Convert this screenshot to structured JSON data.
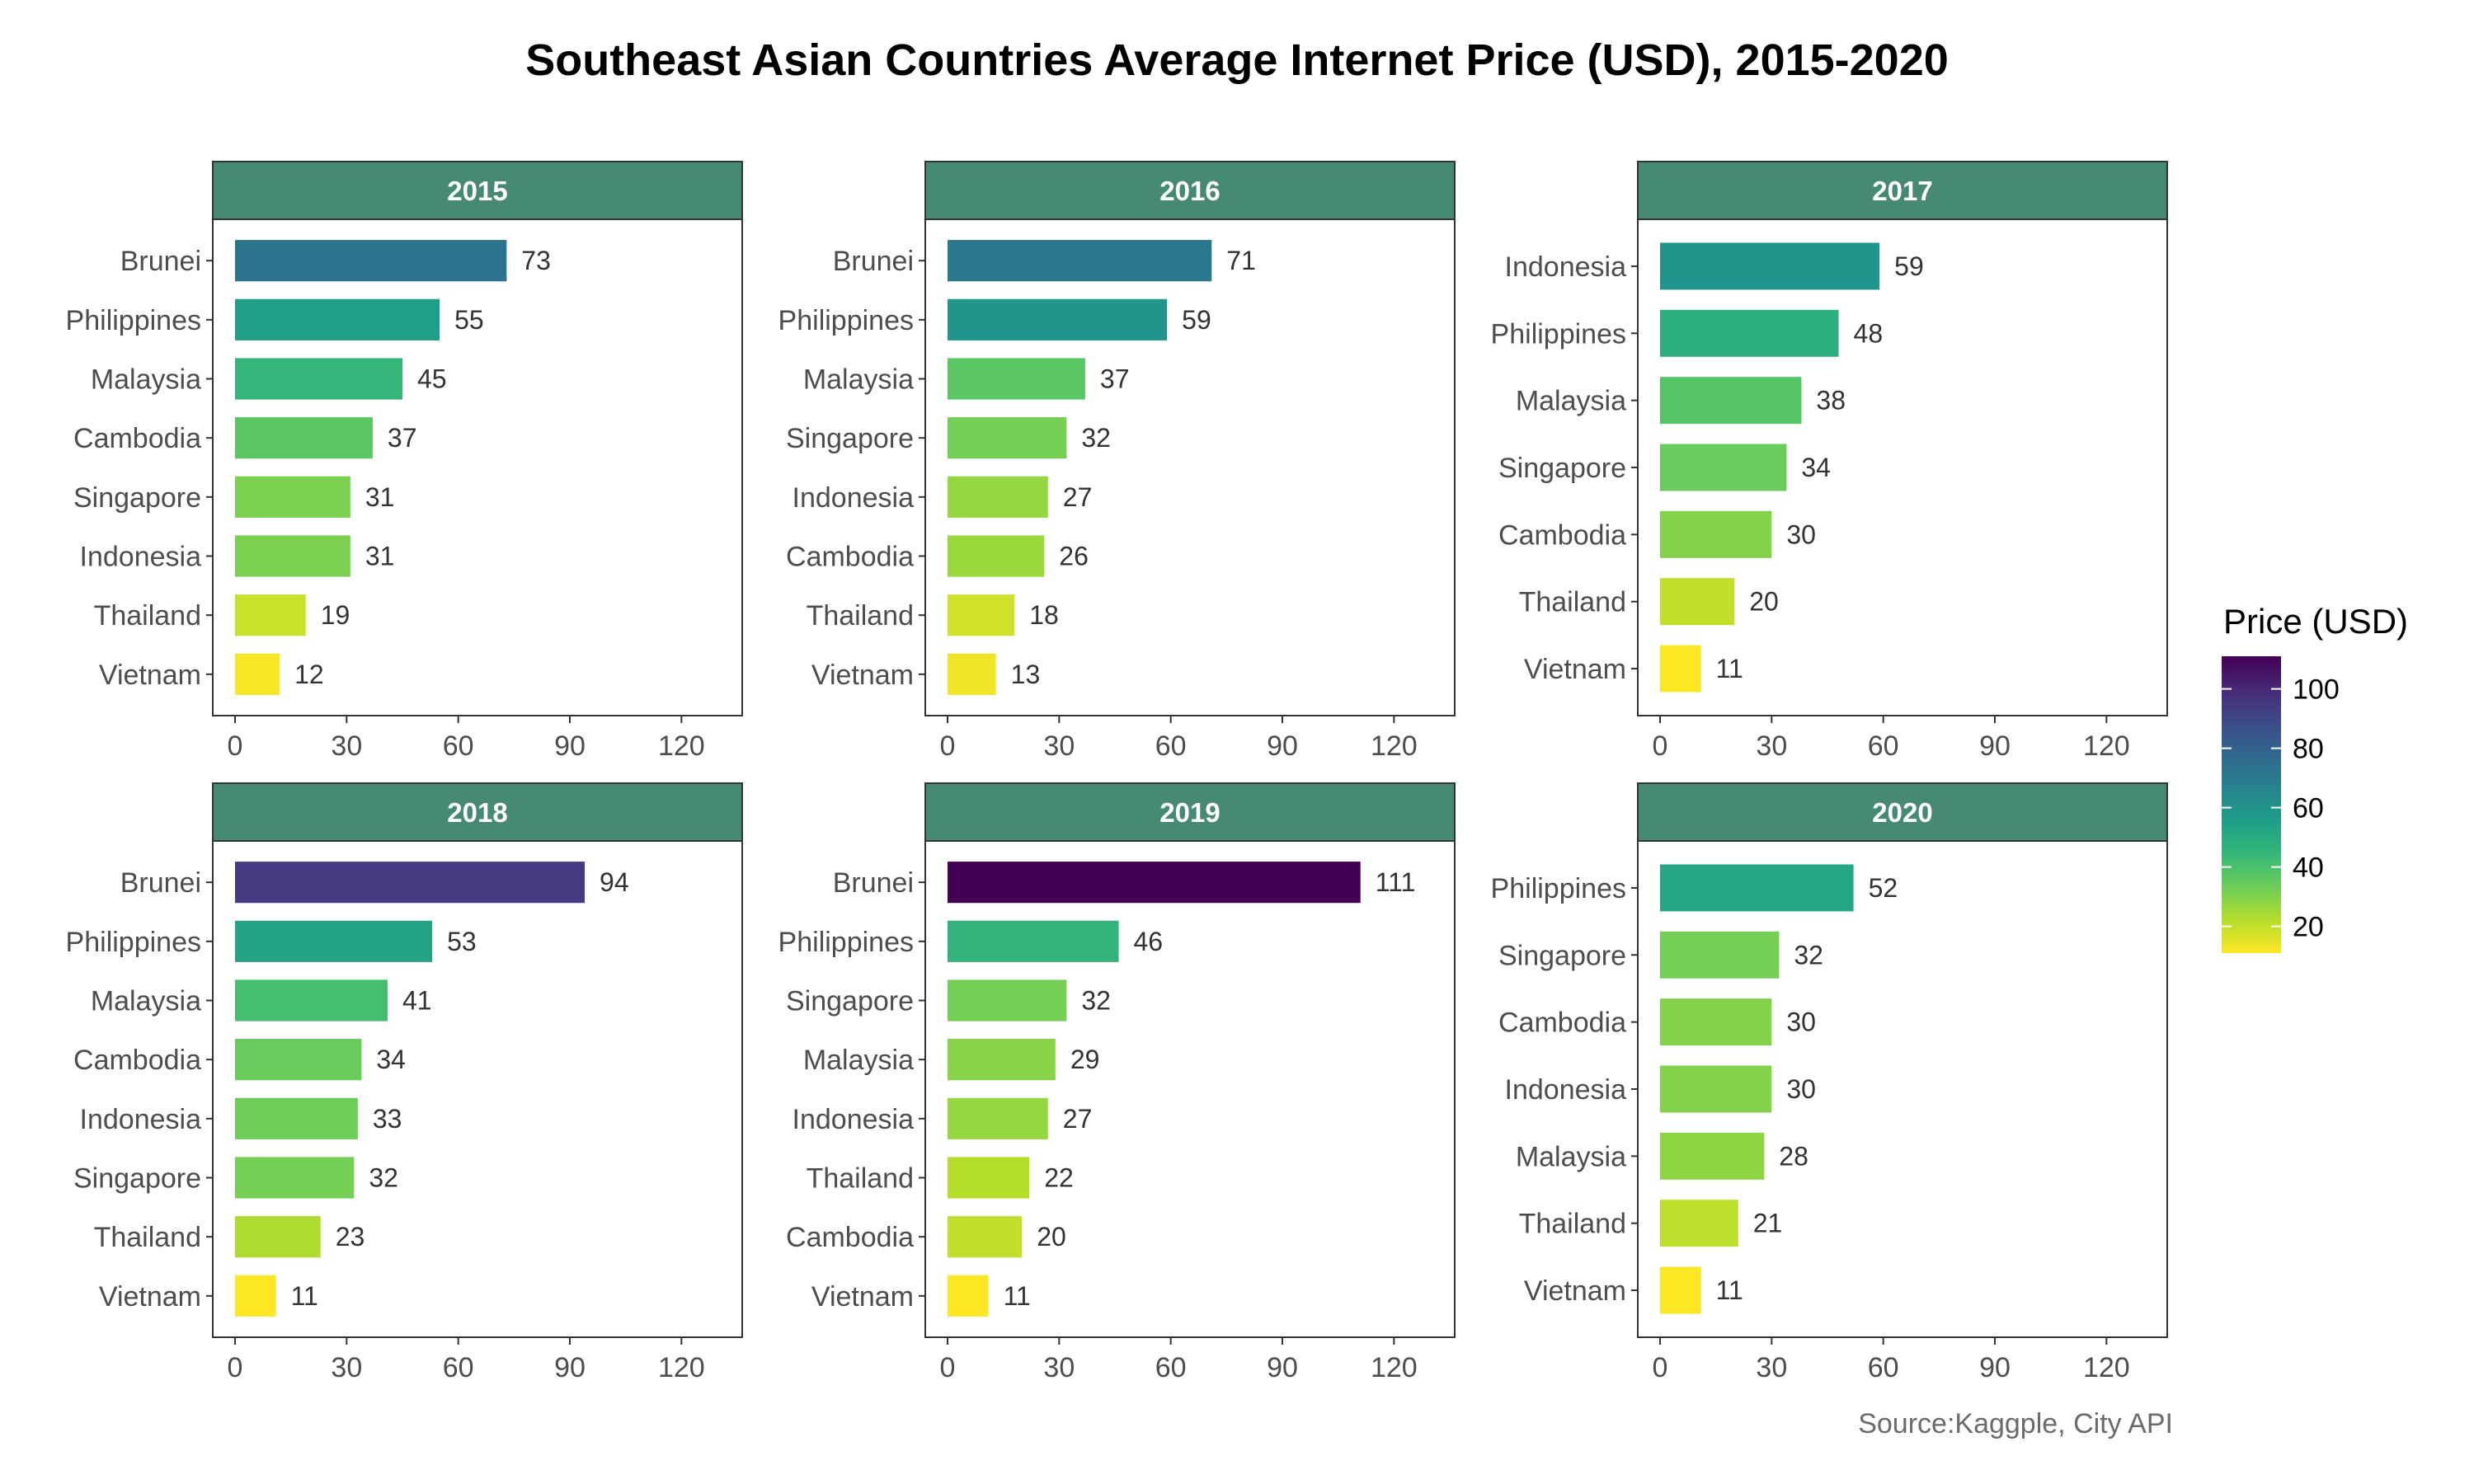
{
  "title": "Southeast Asian Countries Average Internet Price (USD), 2015-2020",
  "source": "Source:Kaggple, City API",
  "legend": {
    "title": "Price (USD)",
    "ticks": [
      20,
      40,
      60,
      80,
      100
    ],
    "range": [
      11,
      111
    ],
    "palette": "viridis (reversed: high = dark purple, low = yellow)"
  },
  "colors": {
    "strip_fill": "#468A74",
    "panel_border": "#333333",
    "viridis_stops": [
      "#440154",
      "#482878",
      "#3E4A89",
      "#31688E",
      "#26828E",
      "#1F9E89",
      "#35B779",
      "#6DCD59",
      "#B4DE2C",
      "#FDE725"
    ]
  },
  "chart_data": {
    "type": "bar",
    "orientation": "horizontal",
    "xlim": [
      0,
      135
    ],
    "xticks": [
      0,
      30,
      60,
      90,
      120
    ],
    "grid": false,
    "legend_position": "right",
    "panels": [
      {
        "label": "2015",
        "categories": [
          "Brunei",
          "Philippines",
          "Malaysia",
          "Cambodia",
          "Singapore",
          "Indonesia",
          "Thailand",
          "Vietnam"
        ],
        "values": [
          73,
          55,
          45,
          37,
          31,
          31,
          19,
          12
        ]
      },
      {
        "label": "2016",
        "categories": [
          "Brunei",
          "Philippines",
          "Malaysia",
          "Singapore",
          "Indonesia",
          "Cambodia",
          "Thailand",
          "Vietnam"
        ],
        "values": [
          71,
          59,
          37,
          32,
          27,
          26,
          18,
          13
        ]
      },
      {
        "label": "2017",
        "categories": [
          "Indonesia",
          "Philippines",
          "Malaysia",
          "Singapore",
          "Cambodia",
          "Thailand",
          "Vietnam"
        ],
        "values": [
          59,
          48,
          38,
          34,
          30,
          20,
          11
        ]
      },
      {
        "label": "2018",
        "categories": [
          "Brunei",
          "Philippines",
          "Malaysia",
          "Cambodia",
          "Indonesia",
          "Singapore",
          "Thailand",
          "Vietnam"
        ],
        "values": [
          94,
          53,
          41,
          34,
          33,
          32,
          23,
          11
        ]
      },
      {
        "label": "2019",
        "categories": [
          "Brunei",
          "Philippines",
          "Singapore",
          "Malaysia",
          "Indonesia",
          "Thailand",
          "Cambodia",
          "Vietnam"
        ],
        "values": [
          111,
          46,
          32,
          29,
          27,
          22,
          20,
          11
        ]
      },
      {
        "label": "2020",
        "categories": [
          "Philippines",
          "Singapore",
          "Cambodia",
          "Indonesia",
          "Malaysia",
          "Thailand",
          "Vietnam"
        ],
        "values": [
          52,
          32,
          30,
          30,
          28,
          21,
          11
        ]
      }
    ]
  }
}
